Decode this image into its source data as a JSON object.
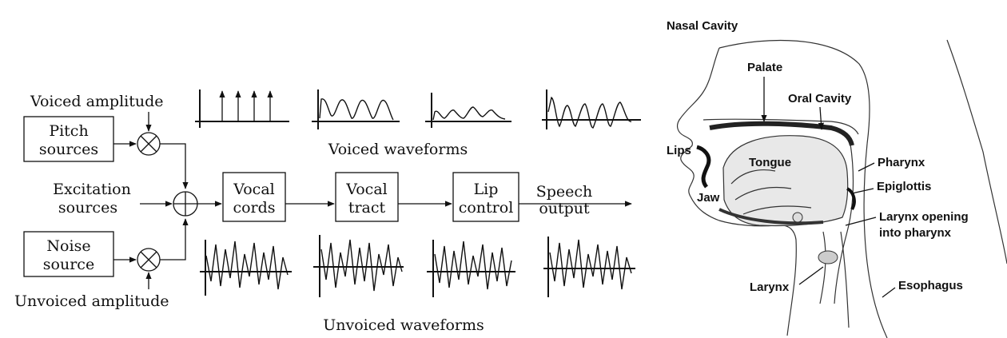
{
  "block_diagram": {
    "voiced_amplitude": "Voiced amplitude",
    "unvoiced_amplitude": "Unvoiced amplitude",
    "pitch_sources": [
      "Pitch",
      "sources"
    ],
    "noise_source": [
      "Noise",
      "source"
    ],
    "excitation_sources": [
      "Excitation",
      "sources"
    ],
    "vocal_cords": [
      "Vocal",
      "cords"
    ],
    "vocal_tract": [
      "Vocal",
      "tract"
    ],
    "lip_control": [
      "Lip",
      "control"
    ],
    "speech_output": [
      "Speech",
      "output"
    ],
    "voiced_waveforms": "Voiced waveforms",
    "unvoiced_waveforms": "Unvoiced waveforms"
  },
  "anatomy": {
    "nasal_cavity": "Nasal Cavity",
    "palate": "Palate",
    "oral_cavity": "Oral Cavity",
    "lips": "Lips",
    "tongue": "Tongue",
    "jaw": "Jaw",
    "pharynx": "Pharynx",
    "epiglottis": "Epiglottis",
    "larynx_opening": [
      "Larynx opening",
      "into pharynx"
    ],
    "larynx": "Larynx",
    "esophagus": "Esophagus"
  }
}
